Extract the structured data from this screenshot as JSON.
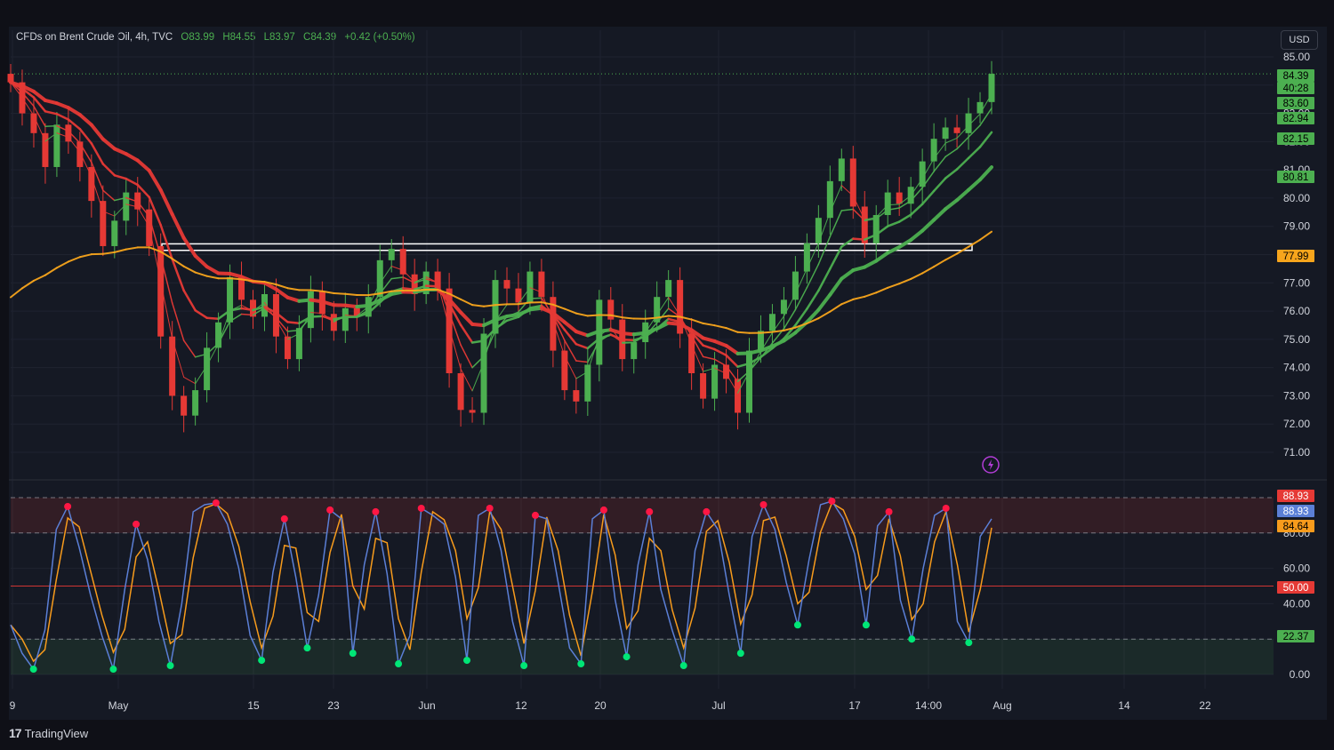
{
  "header": {
    "symbol_text": "CFDs on Brent Crude Oil, 4h, TVC",
    "open": "O83.99",
    "high": "H84.55",
    "low": "L83.97",
    "close": "C84.39",
    "change": "+0.42 (+0.50%)",
    "currency": "USD"
  },
  "brand": {
    "logo_text": "TradingView",
    "logo_mark": "17"
  },
  "colors": {
    "bull": "#4caf50",
    "bear": "#e53935",
    "ema200": "#f7a51c",
    "zone_box": "#ffffff",
    "k_line": "#5b7fd6",
    "d_line": "#f79b1c"
  },
  "chart_data": [
    {
      "type": "line",
      "panel": "price",
      "title": "CFDs on Brent Crude Oil, 4h, TVC",
      "xlabel": "",
      "ylabel": "",
      "x_ticks": [
        "9",
        "May",
        "15",
        "23",
        "Jun",
        "12",
        "20",
        "Jul",
        "17",
        "14:00",
        "Aug",
        "14",
        "22"
      ],
      "y_ticks": [
        "85.00",
        "84.00",
        "83.00",
        "82.00",
        "81.00",
        "80.00",
        "79.00",
        "78.00",
        "77.00",
        "76.00",
        "75.00",
        "74.00",
        "73.00",
        "72.00",
        "71.00"
      ],
      "ylim": [
        70.5,
        85.6
      ],
      "grid": true,
      "series": [
        {
          "name": "close",
          "values": [
            84.1,
            83.0,
            82.3,
            81.1,
            82.6,
            82.0,
            81.1,
            79.9,
            78.3,
            79.2,
            80.2,
            79.6,
            78.3,
            75.1,
            73.0,
            72.3,
            73.2,
            74.7,
            75.6,
            77.2,
            76.4,
            75.8,
            76.6,
            75.1,
            74.3,
            75.4,
            76.7,
            75.9,
            75.3,
            76.1,
            75.8,
            76.5,
            77.8,
            78.2,
            77.3,
            76.6,
            77.4,
            76.8,
            73.8,
            72.5,
            72.4,
            75.2,
            77.1,
            76.8,
            76.3,
            77.4,
            76.5,
            74.6,
            73.2,
            72.8,
            74.1,
            76.4,
            75.7,
            74.3,
            74.9,
            75.6,
            76.5,
            77.1,
            75.2,
            73.8,
            72.9,
            74.1,
            73.6,
            72.4,
            74.6,
            75.3,
            75.9,
            76.4,
            77.4,
            78.4,
            79.3,
            80.6,
            81.4,
            79.7,
            78.4,
            79.4,
            80.2,
            79.8,
            80.4,
            81.3,
            82.1,
            82.5,
            82.3,
            83.0,
            83.4,
            84.4
          ]
        }
      ],
      "price_labels": [
        {
          "text": "84.39",
          "color": "#4caf50"
        },
        {
          "text": "40:28",
          "color": "#4caf50"
        },
        {
          "text": "83.60",
          "color": "#4caf50"
        },
        {
          "text": "82.94",
          "color": "#4caf50"
        },
        {
          "text": "82.15",
          "color": "#4caf50"
        },
        {
          "text": "80.81",
          "color": "#4caf50"
        },
        {
          "text": "77.99",
          "color": "#f7a51c"
        }
      ],
      "zone": {
        "from": 78.15,
        "to": 78.38
      }
    },
    {
      "type": "line",
      "panel": "oscillator",
      "title": "",
      "y_ticks": [
        "80.00",
        "60.00",
        "40.00",
        "20.00",
        "0.00"
      ],
      "ylim": [
        0,
        100
      ],
      "levels": [
        80,
        50,
        20
      ],
      "series": [
        {
          "name": "",
          "values": [
            28,
            12,
            3,
            25,
            82,
            95,
            72,
            45,
            22,
            3,
            48,
            85,
            65,
            30,
            5,
            40,
            92,
            96,
            97,
            85,
            60,
            22,
            8,
            58,
            88,
            55,
            15,
            45,
            93,
            88,
            12,
            62,
            92,
            57,
            6,
            22,
            94,
            90,
            85,
            55,
            8,
            90,
            94,
            70,
            30,
            5,
            90,
            88,
            52,
            15,
            6,
            88,
            93,
            42,
            10,
            62,
            92,
            48,
            25,
            5,
            70,
            92,
            82,
            45,
            12,
            78,
            96,
            82,
            52,
            28,
            65,
            96,
            98,
            88,
            68,
            28,
            84,
            92,
            42,
            20,
            60,
            90,
            94,
            30,
            18,
            78,
            88
          ]
        }
      ],
      "price_labels": [
        {
          "text": "88.93",
          "color": "#e53935"
        },
        {
          "text": "88.93",
          "color": "#5b7fd6"
        },
        {
          "text": "84.64",
          "color": "#f79b1c"
        },
        {
          "text": "50.00",
          "color": "#e53935"
        },
        {
          "text": "22.37",
          "color": "#4caf50"
        }
      ]
    }
  ]
}
